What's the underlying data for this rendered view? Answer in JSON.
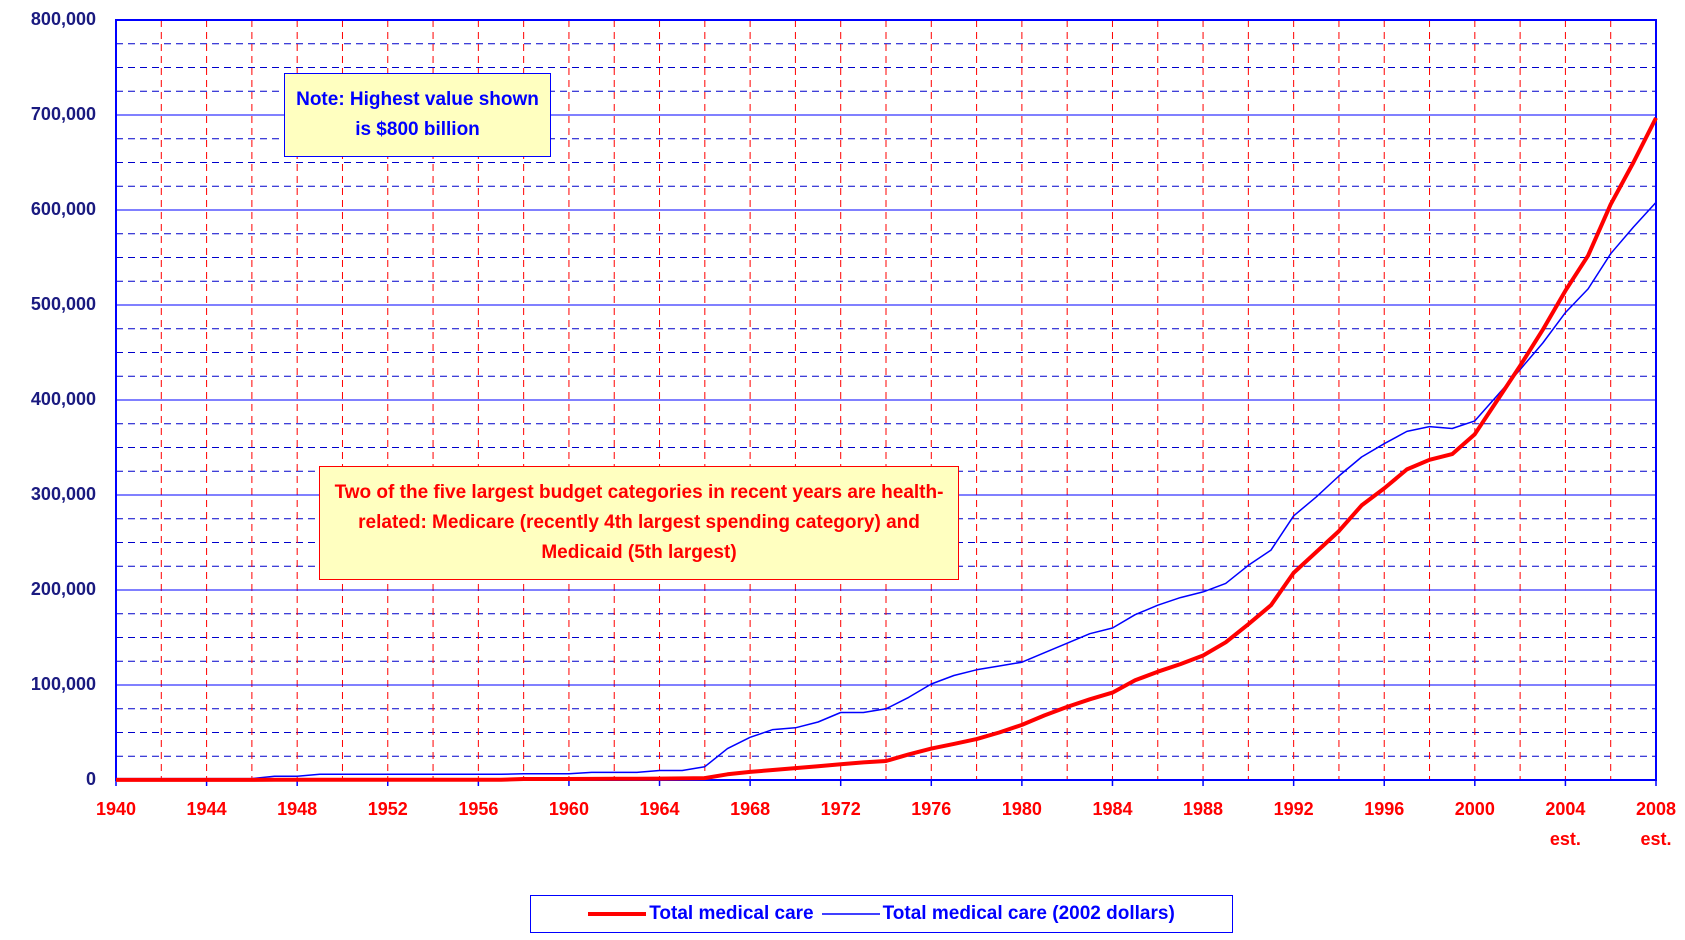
{
  "chart_data": {
    "type": "line",
    "x": [
      1940,
      1941,
      1942,
      1943,
      1944,
      1945,
      1946,
      1947,
      1948,
      1949,
      1950,
      1951,
      1952,
      1953,
      1954,
      1955,
      1956,
      1957,
      1958,
      1959,
      1960,
      1961,
      1962,
      1963,
      1964,
      1965,
      1966,
      1967,
      1968,
      1969,
      1970,
      1971,
      1972,
      1973,
      1974,
      1975,
      1976,
      1977,
      1978,
      1979,
      1980,
      1981,
      1982,
      1983,
      1984,
      1985,
      1986,
      1987,
      1988,
      1989,
      1990,
      1991,
      1992,
      1993,
      1994,
      1995,
      1996,
      1997,
      1998,
      1999,
      2000,
      2001,
      2002,
      2003,
      2004,
      2005,
      2006,
      2007,
      2008
    ],
    "series": [
      {
        "name": "Total medical care",
        "color": "#ff0000",
        "width": 4,
        "values": [
          100,
          100,
          100,
          100,
          100,
          100,
          100,
          300,
          300,
          300,
          300,
          300,
          300,
          300,
          300,
          300,
          300,
          300,
          1000,
          1000,
          1000,
          1200,
          1300,
          1400,
          1500,
          1700,
          2000,
          6000,
          8500,
          10500,
          12500,
          14500,
          16500,
          18500,
          20000,
          27000,
          33000,
          38000,
          43000,
          50000,
          58000,
          68000,
          77000,
          85000,
          92000,
          105000,
          114000,
          122000,
          131000,
          145000,
          164000,
          184000,
          218000,
          240000,
          262000,
          289000,
          307000,
          327000,
          337000,
          343000,
          364000,
          400000,
          436000,
          474000,
          515000,
          552000,
          606000,
          650000,
          697000
        ]
      },
      {
        "name": "Total medical care (2002 dollars)",
        "color": "#0000ff",
        "width": 1.5,
        "values": [
          1500,
          1500,
          1500,
          1500,
          1500,
          1500,
          1500,
          4000,
          4000,
          6000,
          6000,
          6000,
          6000,
          6000,
          6000,
          6000,
          6000,
          6000,
          6500,
          6500,
          6500,
          8000,
          8000,
          8000,
          10000,
          10000,
          14000,
          33000,
          45000,
          53000,
          55000,
          61000,
          71000,
          71000,
          75000,
          87000,
          101000,
          110000,
          116000,
          120000,
          124000,
          134000,
          144000,
          154000,
          160000,
          174000,
          184000,
          192000,
          198000,
          207000,
          226000,
          242000,
          278000,
          298000,
          320000,
          340000,
          354000,
          367000,
          372000,
          370000,
          378000,
          405000,
          432000,
          460000,
          492000,
          517000,
          554000,
          582000,
          608000
        ]
      }
    ],
    "xlim": [
      1940,
      2008
    ],
    "xticks": [
      1940,
      1944,
      1948,
      1952,
      1956,
      1960,
      1964,
      1968,
      1972,
      1976,
      1980,
      1984,
      1988,
      1992,
      1996,
      2000,
      {
        "value": 2004,
        "label": "2004\nest."
      },
      {
        "value": 2008,
        "label": "2008\nest."
      }
    ],
    "xgrid": [
      1942,
      1944,
      1946,
      1948,
      1950,
      1952,
      1954,
      1956,
      1958,
      1960,
      1962,
      1964,
      1966,
      1968,
      1970,
      1972,
      1974,
      1976,
      1978,
      1980,
      1982,
      1984,
      1986,
      1988,
      1990,
      1992,
      1994,
      1996,
      1998,
      2000,
      2002,
      2004,
      2006
    ],
    "ylim": [
      0,
      800000
    ],
    "yticks": [
      0,
      {
        "value": 100000,
        "label": "100,000"
      },
      {
        "value": 200000,
        "label": "200,000"
      },
      {
        "value": 300000,
        "label": "300,000"
      },
      {
        "value": 400000,
        "label": "400,000"
      },
      {
        "value": 500000,
        "label": "500,000"
      },
      {
        "value": 600000,
        "label": "600,000"
      },
      {
        "value": 700000,
        "label": "700,000"
      },
      {
        "value": 800000,
        "label": "800,000"
      }
    ],
    "yticks_minor": [
      25000,
      50000,
      75000,
      125000,
      150000,
      175000,
      225000,
      250000,
      275000,
      325000,
      350000,
      375000,
      425000,
      450000,
      475000,
      525000,
      550000,
      575000,
      625000,
      650000,
      675000,
      725000,
      750000,
      775000
    ],
    "grid": true,
    "legend": "bottom",
    "annotations": [
      {
        "text": "Note:  Highest value shown is $800 billion",
        "color": "#0000ff",
        "border": "#0000ff"
      },
      {
        "text": "Two of the five largest budget categories in recent years are health-related:  Medicare (recently 4th largest spending category) and Medicaid (5th largest)",
        "color": "#ff0000",
        "border": "#ff0000"
      }
    ]
  }
}
